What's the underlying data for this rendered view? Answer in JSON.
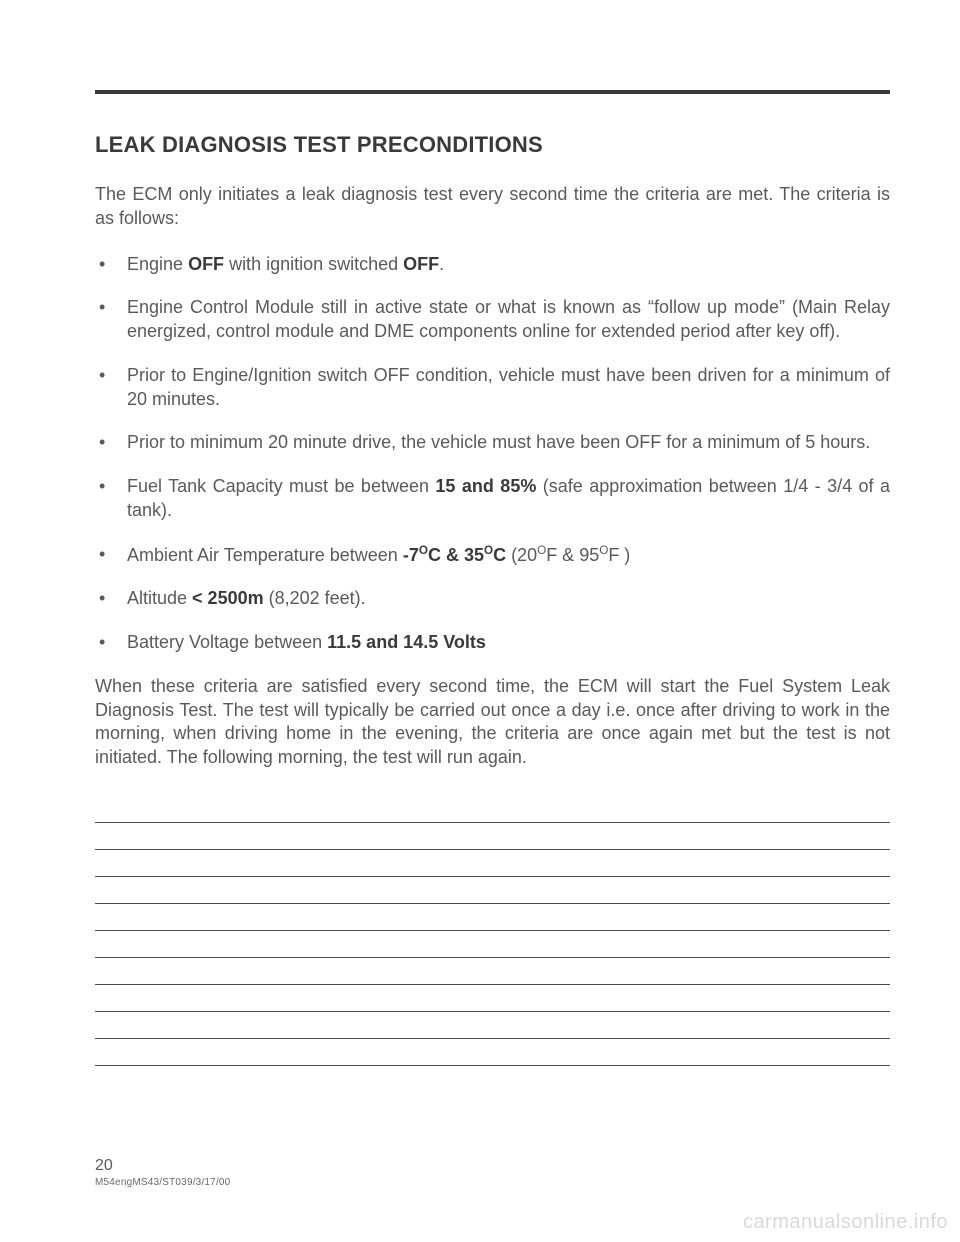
{
  "title": "LEAK DIAGNOSIS TEST PRECONDITIONS",
  "intro": "The ECM only initiates a leak diagnosis test every second time the criteria are met.  The criteria is as follows:",
  "bullets": {
    "b1_pre": "Engine ",
    "b1_off1": "OFF",
    "b1_mid": " with ignition switched ",
    "b1_off2": "OFF",
    "b1_post": ".",
    "b2": "Engine Control Module still in active state or what is known as “follow up mode” (Main Relay energized, control module and DME components online for extended period after key off).",
    "b3": "Prior to Engine/Ignition switch OFF condition, vehicle must have been driven for a minimum of 20 minutes.",
    "b4": "Prior to minimum 20 minute drive, the vehicle must have been OFF for a minimum of 5 hours.",
    "b5_pre": "Fuel Tank Capacity must be between ",
    "b5_bold": "15 and 85%",
    "b5_post": "  (safe approximation between 1/4 - 3/4 of a tank).",
    "b6_pre": "Ambient Air Temperature between ",
    "b6_bold_a": "-7",
    "b6_bold_deg1": "O",
    "b6_bold_c": "C & 35",
    "b6_bold_deg2": "O",
    "b6_bold_c2": "C",
    "b6_mid": "  (20",
    "b6_degF1": "O",
    "b6_f1": "F & 95",
    "b6_degF2": "O",
    "b6_f2": "F )",
    "b7_pre": "Altitude ",
    "b7_bold": "< 2500m",
    "b7_post": " (8,202 feet).",
    "b8_pre": "Battery Voltage between ",
    "b8_bold": "11.5 and 14.5 Volts"
  },
  "closing": "When these criteria are satisfied every second time, the ECM will start the Fuel System Leak Diagnosis Test.  The test will typically be carried out once a day i.e. once after driving to work in the morning,  when driving home in the evening, the criteria are once again met but the test is not initiated.  The following morning, the test will run again.",
  "page_number": "20",
  "doc_code": "M54engMS43/ST039/3/17/00",
  "watermark": "carmanualsonline.info",
  "note_line_count": 10,
  "colors": {
    "text": "#5a5a5a",
    "bold": "#3a3a3a",
    "rule": "#3a3a3a",
    "watermark": "#d9d9d9"
  }
}
